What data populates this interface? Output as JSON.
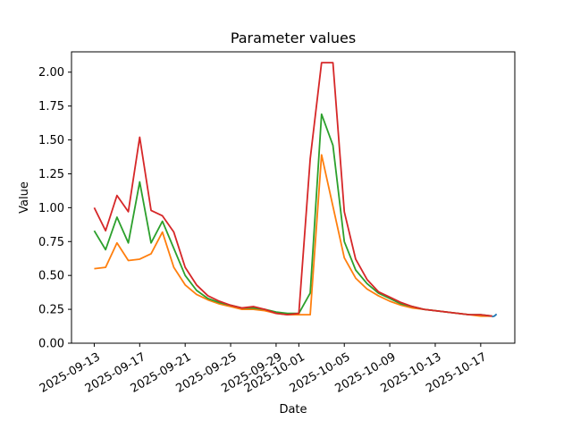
{
  "chart_data": {
    "type": "line",
    "title": "Parameter values",
    "xlabel": "Date",
    "ylabel": "Value",
    "xlim": [
      "2025-09-11",
      "2025-10-20"
    ],
    "ylim": [
      0,
      2.15
    ],
    "grid": false,
    "legend": "none",
    "x": [
      "2025-09-13",
      "2025-09-14",
      "2025-09-15",
      "2025-09-16",
      "2025-09-17",
      "2025-09-18",
      "2025-09-19",
      "2025-09-20",
      "2025-09-21",
      "2025-09-22",
      "2025-09-23",
      "2025-09-24",
      "2025-09-25",
      "2025-09-26",
      "2025-09-27",
      "2025-09-28",
      "2025-09-29",
      "2025-09-30",
      "2025-10-01",
      "2025-10-02",
      "2025-10-03",
      "2025-10-04",
      "2025-10-05",
      "2025-10-06",
      "2025-10-07",
      "2025-10-08",
      "2025-10-09",
      "2025-10-10",
      "2025-10-11",
      "2025-10-12",
      "2025-10-13",
      "2025-10-14",
      "2025-10-15",
      "2025-10-16",
      "2025-10-17",
      "2025-10-18"
    ],
    "x_ticks": [
      "2025-09-13",
      "2025-09-17",
      "2025-09-21",
      "2025-09-25",
      "2025-09-29",
      "2025-10-01",
      "2025-10-05",
      "2025-10-09",
      "2025-10-13",
      "2025-10-17"
    ],
    "y_ticks": [
      "0.00",
      "0.25",
      "0.50",
      "0.75",
      "1.00",
      "1.25",
      "1.50",
      "1.75",
      "2.00"
    ],
    "series": [
      {
        "color": "#ff7f0e",
        "values": [
          0.55,
          0.56,
          0.74,
          0.61,
          0.62,
          0.66,
          0.82,
          0.56,
          0.43,
          0.36,
          0.32,
          0.29,
          0.27,
          0.25,
          0.25,
          0.24,
          0.22,
          0.21,
          0.21,
          0.21,
          1.39,
          1.01,
          0.63,
          0.48,
          0.4,
          0.35,
          0.31,
          0.28,
          0.26,
          0.25,
          0.24,
          0.23,
          0.22,
          0.21,
          0.2,
          0.2
        ]
      },
      {
        "color": "#2ca02c",
        "values": [
          0.83,
          0.69,
          0.93,
          0.74,
          1.19,
          0.74,
          0.9,
          0.7,
          0.5,
          0.39,
          0.33,
          0.3,
          0.28,
          0.26,
          0.26,
          0.25,
          0.23,
          0.22,
          0.22,
          0.37,
          1.69,
          1.46,
          0.75,
          0.54,
          0.44,
          0.37,
          0.33,
          0.29,
          0.27,
          0.25,
          0.24,
          0.23,
          0.22,
          0.21,
          0.21,
          0.2
        ]
      },
      {
        "color": "#d62728",
        "values": [
          1.0,
          0.83,
          1.09,
          0.97,
          1.52,
          0.98,
          0.94,
          0.82,
          0.56,
          0.43,
          0.35,
          0.31,
          0.28,
          0.26,
          0.27,
          0.25,
          0.22,
          0.21,
          0.22,
          1.36,
          2.07,
          2.07,
          0.97,
          0.62,
          0.47,
          0.38,
          0.34,
          0.3,
          0.27,
          0.25,
          0.24,
          0.23,
          0.22,
          0.21,
          0.21,
          0.2
        ]
      },
      {
        "color": "#1f77b4",
        "x": [
          "2025-10-18",
          "2025-10-18.2",
          "2025-10-18.4"
        ],
        "values": [
          0.195,
          0.2,
          0.215
        ]
      }
    ]
  }
}
